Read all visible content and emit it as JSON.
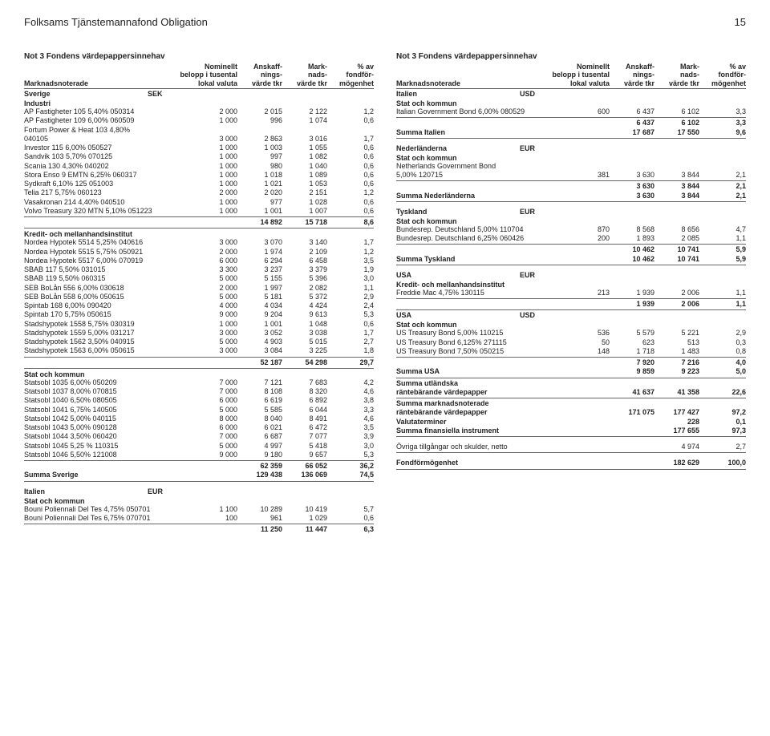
{
  "header": {
    "title": "Folksams Tjänstemannafond Obligation",
    "page": "15"
  },
  "tableHeader": {
    "title": "Not 3 Fondens värdepappersinnehav",
    "r1c1": "",
    "r1c2": "Nominellt",
    "r1c3": "Anskaff-",
    "r1c4": "Mark-",
    "r1c5": "% av",
    "r2c1": "",
    "r2c2": "belopp i tusental",
    "r2c3": "nings-",
    "r2c4": "nads-",
    "r2c5": "fondför-",
    "r3c1": "Marknadsnoterade",
    "r3c2": "lokal valuta",
    "r3c3": "värde tkr",
    "r3c4": "värde tkr",
    "r3c5": "mögenhet"
  },
  "left": {
    "country1": "Sverige",
    "cur1": "SEK",
    "grp_industri": "Industri",
    "rows_industri": [
      [
        "AP Fastigheter 105 5,40% 050314",
        "2 000",
        "2 015",
        "2 122",
        "1,2"
      ],
      [
        "AP Fastigheter 109 6,00% 060509",
        "1 000",
        "996",
        "1 074",
        "0,6"
      ],
      [
        "Fortum Power & Heat 103 4,80%",
        "",
        "",
        "",
        ""
      ],
      [
        "040105",
        "3 000",
        "2 863",
        "3 016",
        "1,7"
      ],
      [
        "Investor 115 6,00% 050527",
        "1 000",
        "1 003",
        "1 055",
        "0,6"
      ],
      [
        "Sandvik 103 5,70% 070125",
        "1 000",
        "997",
        "1 082",
        "0,6"
      ],
      [
        "Scania 130 4,30% 040202",
        "1 000",
        "980",
        "1 040",
        "0,6"
      ],
      [
        "Stora Enso 9 EMTN 6,25% 060317",
        "1 000",
        "1 018",
        "1 089",
        "0,6"
      ],
      [
        "Sydkraft 6,10% 125 051003",
        "1 000",
        "1 021",
        "1 053",
        "0,6"
      ],
      [
        "Telia 217 5,75% 060123",
        "2 000",
        "2 020",
        "2 151",
        "1,2"
      ],
      [
        "Vasakronan 214 4,40% 040510",
        "1 000",
        "977",
        "1 028",
        "0,6"
      ],
      [
        "Volvo Treasury 320 MTN 5,10% 051223",
        "1 000",
        "1 001",
        "1 007",
        "0,6"
      ]
    ],
    "sum_industri": [
      "",
      "",
      "14 892",
      "15 718",
      "8,6"
    ],
    "grp_kredit": "Kredit- och mellanhandsinstitut",
    "rows_kredit": [
      [
        "Nordea Hypotek 5514 5,25% 040616",
        "3 000",
        "3 070",
        "3 140",
        "1,7"
      ],
      [
        "Nordea Hypotek 5515 5,75% 050921",
        "2 000",
        "1 974",
        "2 109",
        "1,2"
      ],
      [
        "Nordea Hypotek 5517 6,00% 070919",
        "6 000",
        "6 294",
        "6 458",
        "3,5"
      ],
      [
        "SBAB 117 5,50% 031015",
        "3 300",
        "3 237",
        "3 379",
        "1,9"
      ],
      [
        "SBAB 119 5,50% 060315",
        "5 000",
        "5 155",
        "5 396",
        "3,0"
      ],
      [
        "SEB BoLån 556 6,00% 030618",
        "2 000",
        "1 997",
        "2 082",
        "1,1"
      ],
      [
        "SEB BoLån 558 6,00% 050615",
        "5 000",
        "5 181",
        "5 372",
        "2,9"
      ],
      [
        "Spintab 168 6,00% 090420",
        "4 000",
        "4 034",
        "4 424",
        "2,4"
      ],
      [
        "Spintab 170 5,75% 050615",
        "9 000",
        "9 204",
        "9 613",
        "5,3"
      ],
      [
        "Stadshypotek 1558 5,75% 030319",
        "1 000",
        "1 001",
        "1 048",
        "0,6"
      ],
      [
        "Stadshypotek 1559 5,00% 031217",
        "3 000",
        "3 052",
        "3 038",
        "1,7"
      ],
      [
        "Stadshypotek 1562 3,50% 040915",
        "5 000",
        "4 903",
        "5 015",
        "2,7"
      ],
      [
        "Stadshypotek 1563 6,00% 050615",
        "3 000",
        "3 084",
        "3 225",
        "1,8"
      ]
    ],
    "sum_kredit": [
      "",
      "",
      "52 187",
      "54 298",
      "29,7"
    ],
    "grp_stat": "Stat och kommun",
    "rows_stat": [
      [
        "Statsobl 1035 6,00% 050209",
        "7 000",
        "7 121",
        "7 683",
        "4,2"
      ],
      [
        "Statsobl 1037 8,00% 070815",
        "7 000",
        "8 108",
        "8 320",
        "4,6"
      ],
      [
        "Statsobl 1040 6,50% 080505",
        "6 000",
        "6 619",
        "6 892",
        "3,8"
      ],
      [
        "Statsobl 1041 6,75% 140505",
        "5 000",
        "5 585",
        "6 044",
        "3,3"
      ],
      [
        "Statsobl 1042 5,00% 040115",
        "8 000",
        "8 040",
        "8 491",
        "4,6"
      ],
      [
        "Statsobl 1043 5,00% 090128",
        "6 000",
        "6 021",
        "6 472",
        "3,5"
      ],
      [
        "Statsobl 1044 3,50% 060420",
        "7 000",
        "6 687",
        "7 077",
        "3,9"
      ],
      [
        "Statsobl 1045 5,25 % 110315",
        "5 000",
        "4 997",
        "5 418",
        "3,0"
      ],
      [
        "Statsobl 1046 5,50% 121008",
        "9 000",
        "9 180",
        "9 657",
        "5,3"
      ]
    ],
    "sum_stat": [
      "",
      "",
      "62 359",
      "66 052",
      "36,2"
    ],
    "sum_sverige": [
      "Summa Sverige",
      "",
      "129 438",
      "136 069",
      "74,5"
    ],
    "country2": "Italien",
    "cur2": "EUR",
    "grp_it_stat": "Stat och kommun",
    "rows_it": [
      [
        "Bouni Poliennali Del Tes 4,75% 050701",
        "1 100",
        "10 289",
        "10 419",
        "5,7"
      ],
      [
        "Bouni Poliennali Del Tes 6,75% 070701",
        "100",
        "961",
        "1 029",
        "0,6"
      ]
    ],
    "sum_it": [
      "",
      "",
      "11 250",
      "11 447",
      "6,3"
    ]
  },
  "right": {
    "country1": "Italien",
    "cur1": "USD",
    "grp1": "Stat och kommun",
    "rows1": [
      [
        "Italian Government Bond 6,00% 080529",
        "600",
        "6 437",
        "6 102",
        "3,3"
      ]
    ],
    "sum1": [
      "",
      "",
      "6 437",
      "6 102",
      "3,3"
    ],
    "sum_italien": [
      "Summa Italien",
      "",
      "17 687",
      "17 550",
      "9,6"
    ],
    "country2": "Nederländerna",
    "cur2": "EUR",
    "grp2": "Stat och kommun",
    "rows2": [
      [
        "Netherlands Government Bond",
        "",
        "",
        "",
        ""
      ],
      [
        "5,00% 120715",
        "381",
        "3 630",
        "3 844",
        "2,1"
      ]
    ],
    "sum2": [
      "",
      "",
      "3 630",
      "3 844",
      "2,1"
    ],
    "sum_ned": [
      "Summa Nederländerna",
      "",
      "3 630",
      "3 844",
      "2,1"
    ],
    "country3": "Tyskland",
    "cur3": "EUR",
    "grp3": "Stat och kommun",
    "rows3": [
      [
        "Bundesrep. Deutschland 5,00% 110704",
        "870",
        "8 568",
        "8 656",
        "4,7"
      ],
      [
        "Bundesrep. Deutschland 6,25% 060426",
        "200",
        "1 893",
        "2 085",
        "1,1"
      ]
    ],
    "sum3": [
      "",
      "",
      "10 462",
      "10 741",
      "5,9"
    ],
    "sum_tys": [
      "Summa Tyskland",
      "",
      "10 462",
      "10 741",
      "5,9"
    ],
    "country4": "USA",
    "cur4": "EUR",
    "grp4": "Kredit- och mellanhandsinstitut",
    "rows4": [
      [
        "Freddie Mac 4,75% 130115",
        "213",
        "1 939",
        "2 006",
        "1,1"
      ]
    ],
    "sum4": [
      "",
      "",
      "1 939",
      "2 006",
      "1,1"
    ],
    "country4b": "USA",
    "cur4b": "USD",
    "grp4b": "Stat och kommun",
    "rows4b": [
      [
        "US Treasury Bond 5,00% 110215",
        "536",
        "5 579",
        "5 221",
        "2,9"
      ],
      [
        "US Treasury Bond 6,125% 271115",
        "50",
        "623",
        "513",
        "0,3"
      ],
      [
        "US Treasury Bond 7,50% 050215",
        "148",
        "1 718",
        "1 483",
        "0,8"
      ]
    ],
    "sum4b": [
      "",
      "",
      "7 920",
      "7 216",
      "4,0"
    ],
    "sum_usa": [
      "Summa USA",
      "",
      "9 859",
      "9 223",
      "5,0"
    ],
    "sum_utl_lbl": "Summa utländska",
    "sum_utl": [
      "räntebärande värdepapper",
      "",
      "41 637",
      "41 358",
      "22,6"
    ],
    "sum_mkt_lbl": "Summa marknadsnoterade",
    "sum_mkt": [
      "räntebärande värdepapper",
      "",
      "171 075",
      "177 427",
      "97,2"
    ],
    "valuta": [
      "Valutaterminer",
      "",
      "",
      "228",
      "0,1"
    ],
    "sum_fin": [
      "Summa finansiella instrument",
      "",
      "",
      "177 655",
      "97,3"
    ],
    "ovriga": [
      "Övriga tillgångar och skulder, netto",
      "",
      "",
      "4 974",
      "2,7"
    ],
    "fondform": [
      "Fondförmögenhet",
      "",
      "",
      "182 629",
      "100,0"
    ]
  }
}
